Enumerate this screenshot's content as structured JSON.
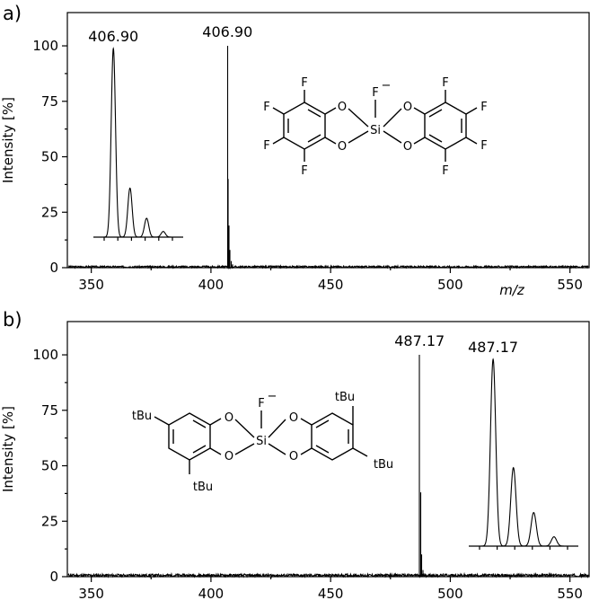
{
  "chart_data": [
    {
      "panel": "a)",
      "type": "line",
      "ylabel": "Intensity [%]",
      "xlabel": "m/z",
      "xlim": [
        340,
        558
      ],
      "ylim": [
        0,
        115
      ],
      "xticks": [
        350,
        400,
        450,
        500,
        550
      ],
      "yticks": [
        0,
        25,
        50,
        75,
        100
      ],
      "noise_level": 0.8,
      "peaks": [
        {
          "x": 406.9,
          "y": 100
        },
        {
          "x": 407.25,
          "y": 40
        },
        {
          "x": 407.5,
          "y": 19
        },
        {
          "x": 407.9,
          "y": 8
        },
        {
          "x": 408.4,
          "y": 3
        },
        {
          "x": 409.0,
          "y": 1.5
        }
      ],
      "peak_label": "406.90",
      "inset": {
        "label": "406.90",
        "peaks": [
          {
            "x": 406.9,
            "y": 100
          },
          {
            "x": 407.9,
            "y": 26
          },
          {
            "x": 408.9,
            "y": 10
          },
          {
            "x": 409.9,
            "y": 3
          }
        ]
      },
      "molecule": {
        "atoms": [
          "F",
          "F",
          "F",
          "F",
          "O",
          "O",
          "Si",
          "F",
          "−",
          "O",
          "O",
          "F",
          "F",
          "F",
          "F"
        ]
      }
    },
    {
      "panel": "b)",
      "type": "line",
      "ylabel": "Intensity [%]",
      "xlabel": "",
      "xlim": [
        340,
        558
      ],
      "ylim": [
        0,
        115
      ],
      "xticks": [
        350,
        400,
        450,
        500,
        550
      ],
      "yticks": [
        0,
        25,
        50,
        75,
        100
      ],
      "noise_level": 1.2,
      "peaks": [
        {
          "x": 487.17,
          "y": 100
        },
        {
          "x": 487.6,
          "y": 38
        },
        {
          "x": 488.1,
          "y": 10
        },
        {
          "x": 488.6,
          "y": 3
        }
      ],
      "peak_label": "487.17",
      "inset": {
        "label": "487.17",
        "peaks": [
          {
            "x": 487.17,
            "y": 100
          },
          {
            "x": 488.17,
            "y": 42
          },
          {
            "x": 489.17,
            "y": 18
          },
          {
            "x": 490.17,
            "y": 5
          }
        ]
      },
      "molecule": {
        "atoms": [
          "tBu",
          "O",
          "O",
          "Si",
          "F",
          "−",
          "O",
          "O",
          "tBu",
          "tBu",
          "tBu"
        ]
      }
    }
  ]
}
